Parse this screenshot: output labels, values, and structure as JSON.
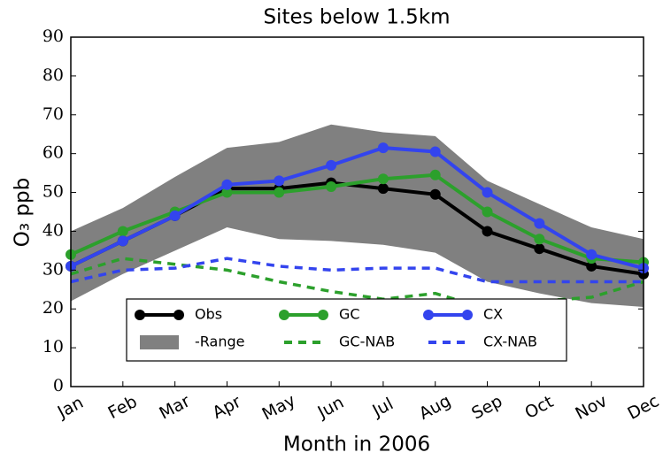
{
  "chart_data": {
    "type": "line",
    "title": "Sites below 1.5km",
    "xlabel": "Month in 2006",
    "ylabel": "O₃ ppb",
    "categories": [
      "Jan",
      "Feb",
      "Mar",
      "Apr",
      "May",
      "Jun",
      "Jul",
      "Aug",
      "Sep",
      "Oct",
      "Nov",
      "Dec"
    ],
    "ylim": [
      0,
      90
    ],
    "yticks": [
      0,
      10,
      20,
      30,
      40,
      50,
      60,
      70,
      80,
      90
    ],
    "legend": "lower center",
    "series": [
      {
        "name": "Obs",
        "color": "#000000",
        "markers": true,
        "values": [
          31,
          37.5,
          44,
          51,
          51,
          52.5,
          51,
          49.5,
          40,
          35.5,
          31,
          29
        ]
      },
      {
        "name": "GC",
        "color": "#2ca02c",
        "markers": true,
        "values": [
          34,
          40,
          45,
          50,
          50,
          51.5,
          53.5,
          54.5,
          45,
          38,
          33,
          32
        ]
      },
      {
        "name": "CX",
        "color": "#3344ee",
        "markers": true,
        "values": [
          31,
          37.5,
          44,
          52,
          53,
          57,
          61.5,
          60.5,
          50,
          42,
          34,
          30.5
        ]
      },
      {
        "name": "-Range",
        "color": "#808080",
        "area": true,
        "upper": [
          40,
          46,
          54,
          61.5,
          63,
          67.5,
          65.5,
          64.5,
          53,
          47,
          41,
          38
        ],
        "lower": [
          22,
          29,
          35,
          41,
          38,
          37.5,
          36.5,
          34.5,
          27,
          24,
          21.5,
          20.5
        ]
      },
      {
        "name": "GC-NAB",
        "color": "#2ca02c",
        "dashed": true,
        "values": [
          29,
          33,
          31.5,
          30,
          27,
          24.5,
          22.5,
          24,
          20,
          22,
          23,
          27
        ]
      },
      {
        "name": "CX-NAB",
        "color": "#3344ee",
        "dashed": true,
        "values": [
          27,
          30,
          30.5,
          33,
          31,
          30,
          30.5,
          30.5,
          27,
          27,
          27,
          27
        ]
      }
    ]
  }
}
